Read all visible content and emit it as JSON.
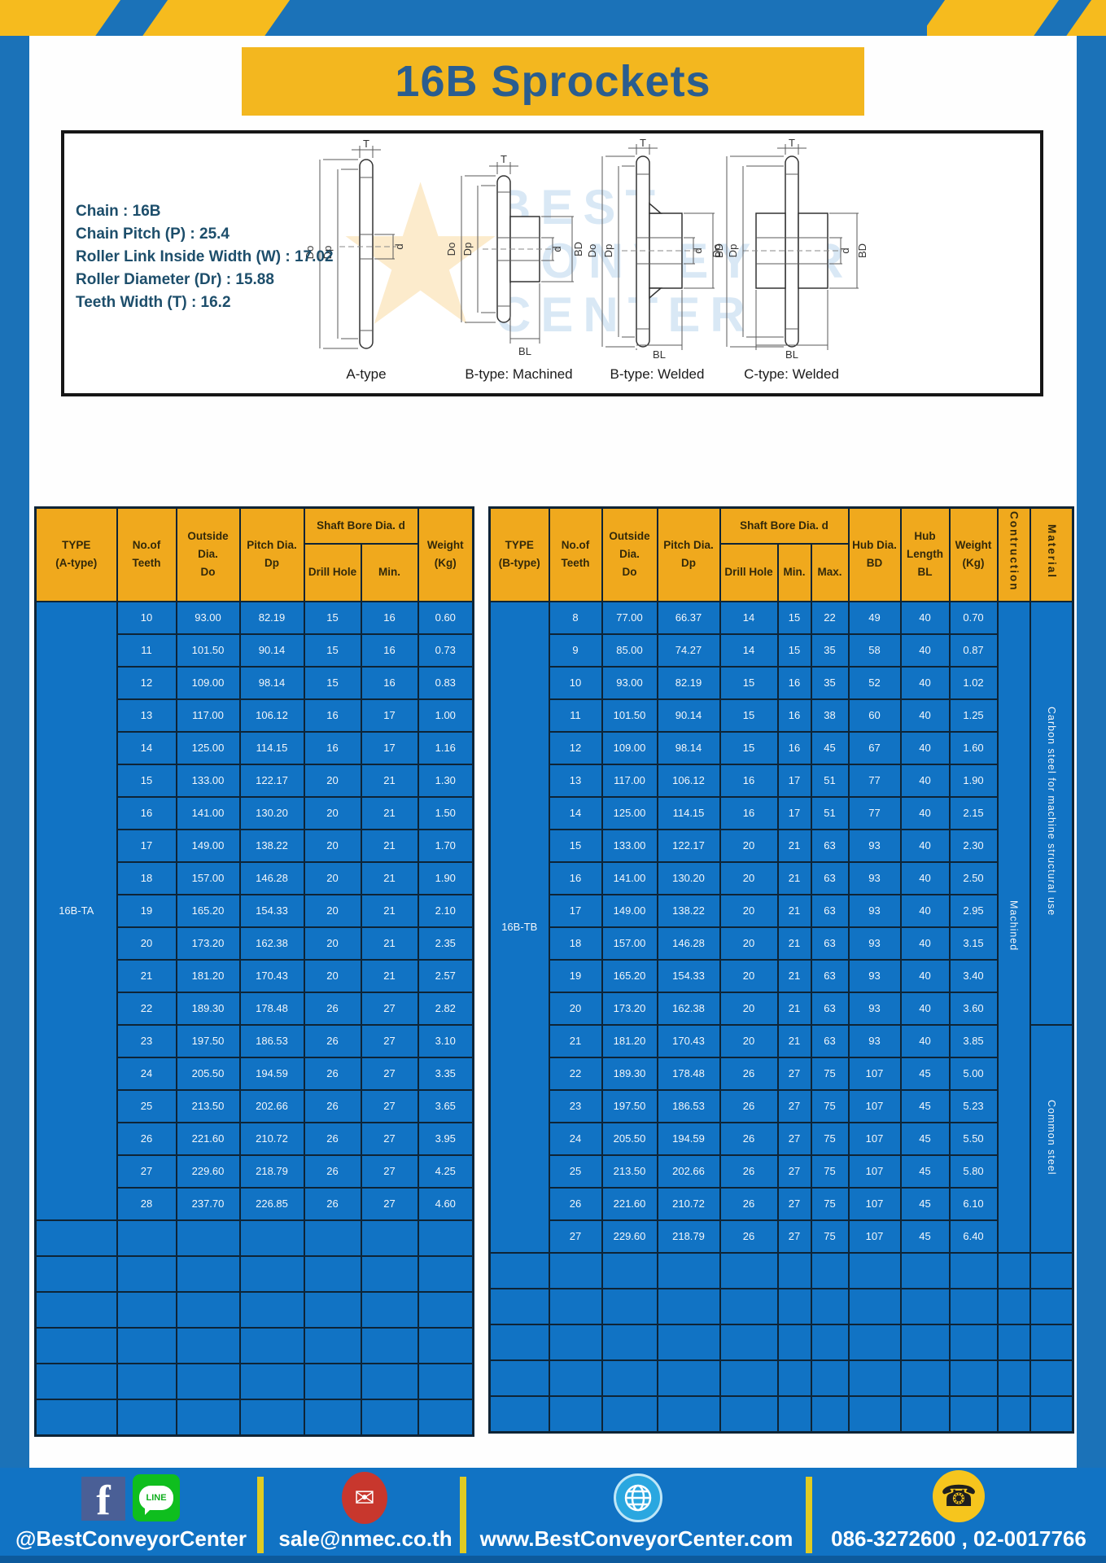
{
  "header": {
    "title": "16B Sprockets"
  },
  "specs": [
    "Chain  :  16B",
    "Chain Pitch (P)  :  25.4",
    "Roller Link Inside Width (W)  :  17.02",
    "Roller Diameter (Dr)  : 15.88",
    "Teeth Width (T)  :  16.2"
  ],
  "diagrams": {
    "captions": [
      "A-type",
      "B-type: Machined",
      "B-type: Welded",
      "C-type: Welded"
    ],
    "dims": {
      "t": "T",
      "dia_o": "Do",
      "dia_p": "Dp",
      "d": "d",
      "bd": "BD",
      "bl": "BL"
    }
  },
  "watermark": {
    "line1": "BEST",
    "line2": "CONVEYOR",
    "line3": "CENTER",
    "star": "★"
  },
  "table_a": {
    "headers": {
      "type": "TYPE\n(A-type)",
      "teeth": "No.of\nTeeth",
      "outside": "Outside\nDia.\nDo",
      "pitch": "Pitch Dia.\nDp",
      "shaft_bore": "Shaft Bore Dia. d",
      "drill": "Drill Hole",
      "min": "Min.",
      "weight": "Weight\n(Kg)"
    },
    "type_label": "16B-TA",
    "rows": [
      [
        "10",
        "93.00",
        "82.19",
        "15",
        "16",
        "0.60"
      ],
      [
        "11",
        "101.50",
        "90.14",
        "15",
        "16",
        "0.73"
      ],
      [
        "12",
        "109.00",
        "98.14",
        "15",
        "16",
        "0.83"
      ],
      [
        "13",
        "117.00",
        "106.12",
        "16",
        "17",
        "1.00"
      ],
      [
        "14",
        "125.00",
        "114.15",
        "16",
        "17",
        "1.16"
      ],
      [
        "15",
        "133.00",
        "122.17",
        "20",
        "21",
        "1.30"
      ],
      [
        "16",
        "141.00",
        "130.20",
        "20",
        "21",
        "1.50"
      ],
      [
        "17",
        "149.00",
        "138.22",
        "20",
        "21",
        "1.70"
      ],
      [
        "18",
        "157.00",
        "146.28",
        "20",
        "21",
        "1.90"
      ],
      [
        "19",
        "165.20",
        "154.33",
        "20",
        "21",
        "2.10"
      ],
      [
        "20",
        "173.20",
        "162.38",
        "20",
        "21",
        "2.35"
      ],
      [
        "21",
        "181.20",
        "170.43",
        "20",
        "21",
        "2.57"
      ],
      [
        "22",
        "189.30",
        "178.48",
        "26",
        "27",
        "2.82"
      ],
      [
        "23",
        "197.50",
        "186.53",
        "26",
        "27",
        "3.10"
      ],
      [
        "24",
        "205.50",
        "194.59",
        "26",
        "27",
        "3.35"
      ],
      [
        "25",
        "213.50",
        "202.66",
        "26",
        "27",
        "3.65"
      ],
      [
        "26",
        "221.60",
        "210.72",
        "26",
        "27",
        "3.95"
      ],
      [
        "27",
        "229.60",
        "218.79",
        "26",
        "27",
        "4.25"
      ],
      [
        "28",
        "237.70",
        "226.85",
        "26",
        "27",
        "4.60"
      ]
    ],
    "empty_rows": 6
  },
  "table_b": {
    "headers": {
      "type": "TYPE\n(B-type)",
      "teeth": "No.of\nTeeth",
      "outside": "Outside\nDia.\nDo",
      "pitch": "Pitch Dia.\nDp",
      "shaft_bore": "Shaft Bore Dia. d",
      "drill": "Drill Hole",
      "min": "Min.",
      "max": "Max.",
      "hub_dia": "Hub Dia.\nBD",
      "hub_len": "Hub\nLength\nBL",
      "weight": "Weight\n(Kg)",
      "construction": "Contruction",
      "material": "Material"
    },
    "type_label": "16B-TB",
    "rows": [
      [
        "8",
        "77.00",
        "66.37",
        "14",
        "15",
        "22",
        "49",
        "40",
        "0.70"
      ],
      [
        "9",
        "85.00",
        "74.27",
        "14",
        "15",
        "35",
        "58",
        "40",
        "0.87"
      ],
      [
        "10",
        "93.00",
        "82.19",
        "15",
        "16",
        "35",
        "52",
        "40",
        "1.02"
      ],
      [
        "11",
        "101.50",
        "90.14",
        "15",
        "16",
        "38",
        "60",
        "40",
        "1.25"
      ],
      [
        "12",
        "109.00",
        "98.14",
        "15",
        "16",
        "45",
        "67",
        "40",
        "1.60"
      ],
      [
        "13",
        "117.00",
        "106.12",
        "16",
        "17",
        "51",
        "77",
        "40",
        "1.90"
      ],
      [
        "14",
        "125.00",
        "114.15",
        "16",
        "17",
        "51",
        "77",
        "40",
        "2.15"
      ],
      [
        "15",
        "133.00",
        "122.17",
        "20",
        "21",
        "63",
        "93",
        "40",
        "2.30"
      ],
      [
        "16",
        "141.00",
        "130.20",
        "20",
        "21",
        "63",
        "93",
        "40",
        "2.50"
      ],
      [
        "17",
        "149.00",
        "138.22",
        "20",
        "21",
        "63",
        "93",
        "40",
        "2.95"
      ],
      [
        "18",
        "157.00",
        "146.28",
        "20",
        "21",
        "63",
        "93",
        "40",
        "3.15"
      ],
      [
        "19",
        "165.20",
        "154.33",
        "20",
        "21",
        "63",
        "93",
        "40",
        "3.40"
      ],
      [
        "20",
        "173.20",
        "162.38",
        "20",
        "21",
        "63",
        "93",
        "40",
        "3.60"
      ],
      [
        "21",
        "181.20",
        "170.43",
        "20",
        "21",
        "63",
        "93",
        "40",
        "3.85"
      ],
      [
        "22",
        "189.30",
        "178.48",
        "26",
        "27",
        "75",
        "107",
        "45",
        "5.00"
      ],
      [
        "23",
        "197.50",
        "186.53",
        "26",
        "27",
        "75",
        "107",
        "45",
        "5.23"
      ],
      [
        "24",
        "205.50",
        "194.59",
        "26",
        "27",
        "75",
        "107",
        "45",
        "5.50"
      ],
      [
        "25",
        "213.50",
        "202.66",
        "26",
        "27",
        "75",
        "107",
        "45",
        "5.80"
      ],
      [
        "26",
        "221.60",
        "210.72",
        "26",
        "27",
        "75",
        "107",
        "45",
        "6.10"
      ],
      [
        "27",
        "229.60",
        "218.79",
        "26",
        "27",
        "75",
        "107",
        "45",
        "6.40"
      ]
    ],
    "construction_label": "Machined",
    "material_upper": "Carbon steel for machine structural use",
    "material_lower": "Common steel",
    "material_upper_rowspan": 13,
    "empty_rows": 5
  },
  "footer": {
    "facebook_letter": "f",
    "line_badge": "LINE",
    "social_handle": "@BestConveyorCenter",
    "mail_glyph": "✉",
    "email": "sale@nmec.co.th",
    "website": "www.BestConveyorCenter.com",
    "phone_glyph": "☎",
    "phones": "086-3272600 , 02-0017766"
  },
  "colors": {
    "frame_blue": "#1b72b8",
    "table_blue": "#1173c4",
    "header_yellow": "#f0a91d",
    "banner_yellow": "#f3b71f",
    "hazard_yellow": "#f6bb1e",
    "title_text_blue": "#2a5d8f",
    "grid_line": "#0e2436",
    "footer_divider": "#e0cb22"
  }
}
